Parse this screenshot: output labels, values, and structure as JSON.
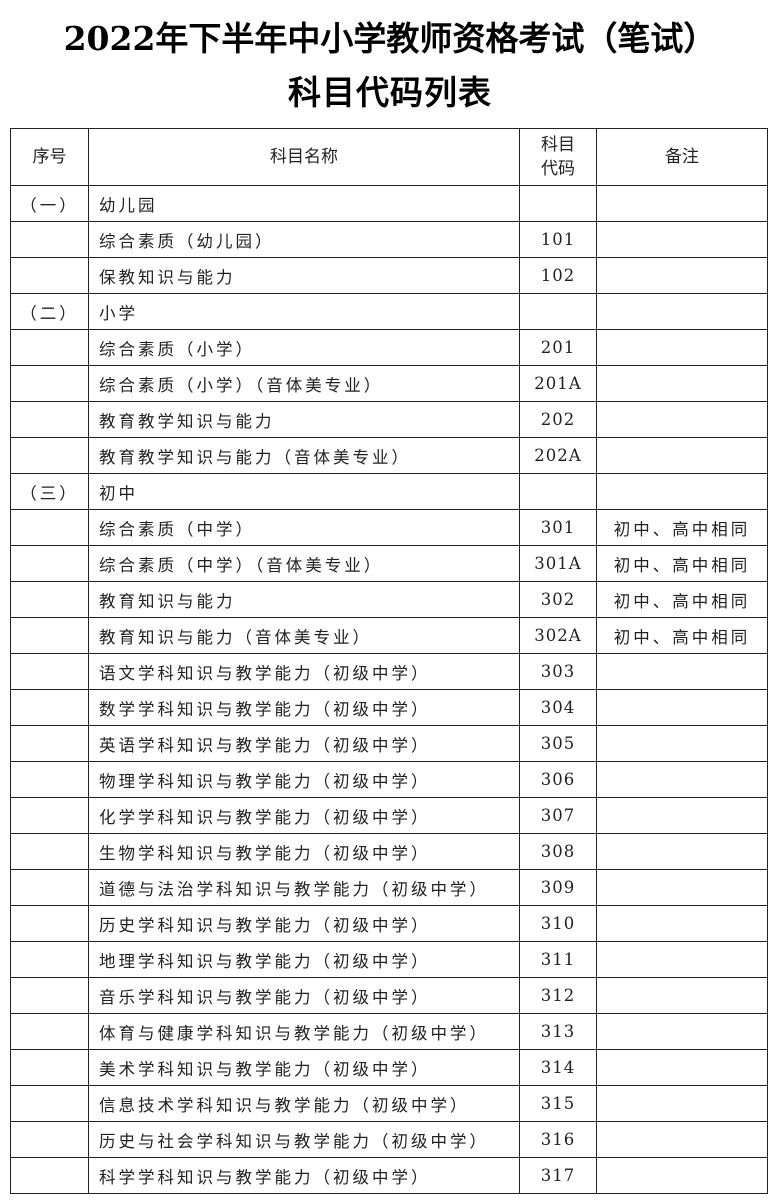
{
  "title_line1": "2022年下半年中小学教师资格考试（笔试）",
  "title_line2": "科目代码列表",
  "headers": {
    "seq": "序号",
    "name": "科目名称",
    "code": "科目代码",
    "note": "备注"
  },
  "rows": [
    {
      "seq": "（一）",
      "name": "幼儿园",
      "code": "",
      "note": ""
    },
    {
      "seq": "",
      "name": "综合素质（幼儿园）",
      "code": "101",
      "note": ""
    },
    {
      "seq": "",
      "name": "保教知识与能力",
      "code": "102",
      "note": ""
    },
    {
      "seq": "（二）",
      "name": "小学",
      "code": "",
      "note": ""
    },
    {
      "seq": "",
      "name": "综合素质（小学）",
      "code": "201",
      "note": ""
    },
    {
      "seq": "",
      "name": "综合素质（小学）（音体美专业）",
      "code": "201A",
      "note": ""
    },
    {
      "seq": "",
      "name": "教育教学知识与能力",
      "code": "202",
      "note": ""
    },
    {
      "seq": "",
      "name": "教育教学知识与能力（音体美专业）",
      "code": "202A",
      "note": ""
    },
    {
      "seq": "（三）",
      "name": "初中",
      "code": "",
      "note": ""
    },
    {
      "seq": "",
      "name": "综合素质（中学）",
      "code": "301",
      "note": "初中、高中相同"
    },
    {
      "seq": "",
      "name": "综合素质（中学）（音体美专业）",
      "code": "301A",
      "note": "初中、高中相同"
    },
    {
      "seq": "",
      "name": "教育知识与能力",
      "code": "302",
      "note": "初中、高中相同"
    },
    {
      "seq": "",
      "name": "教育知识与能力（音体美专业）",
      "code": "302A",
      "note": "初中、高中相同"
    },
    {
      "seq": "",
      "name": "语文学科知识与教学能力（初级中学）",
      "code": "303",
      "note": ""
    },
    {
      "seq": "",
      "name": "数学学科知识与教学能力（初级中学）",
      "code": "304",
      "note": ""
    },
    {
      "seq": "",
      "name": "英语学科知识与教学能力（初级中学）",
      "code": "305",
      "note": ""
    },
    {
      "seq": "",
      "name": "物理学科知识与教学能力（初级中学）",
      "code": "306",
      "note": ""
    },
    {
      "seq": "",
      "name": "化学学科知识与教学能力（初级中学）",
      "code": "307",
      "note": ""
    },
    {
      "seq": "",
      "name": "生物学科知识与教学能力（初级中学）",
      "code": "308",
      "note": ""
    },
    {
      "seq": "",
      "name": "道德与法治学科知识与教学能力（初级中学）",
      "code": "309",
      "note": ""
    },
    {
      "seq": "",
      "name": "历史学科知识与教学能力（初级中学）",
      "code": "310",
      "note": ""
    },
    {
      "seq": "",
      "name": "地理学科知识与教学能力（初级中学）",
      "code": "311",
      "note": ""
    },
    {
      "seq": "",
      "name": "音乐学科知识与教学能力（初级中学）",
      "code": "312",
      "note": ""
    },
    {
      "seq": "",
      "name": "体育与健康学科知识与教学能力（初级中学）",
      "code": "313",
      "note": ""
    },
    {
      "seq": "",
      "name": "美术学科知识与教学能力（初级中学）",
      "code": "314",
      "note": ""
    },
    {
      "seq": "",
      "name": "信息技术学科知识与教学能力（初级中学）",
      "code": "315",
      "note": ""
    },
    {
      "seq": "",
      "name": "历史与社会学科知识与教学能力（初级中学）",
      "code": "316",
      "note": ""
    },
    {
      "seq": "",
      "name": "科学学科知识与教学能力（初级中学）",
      "code": "317",
      "note": ""
    }
  ]
}
